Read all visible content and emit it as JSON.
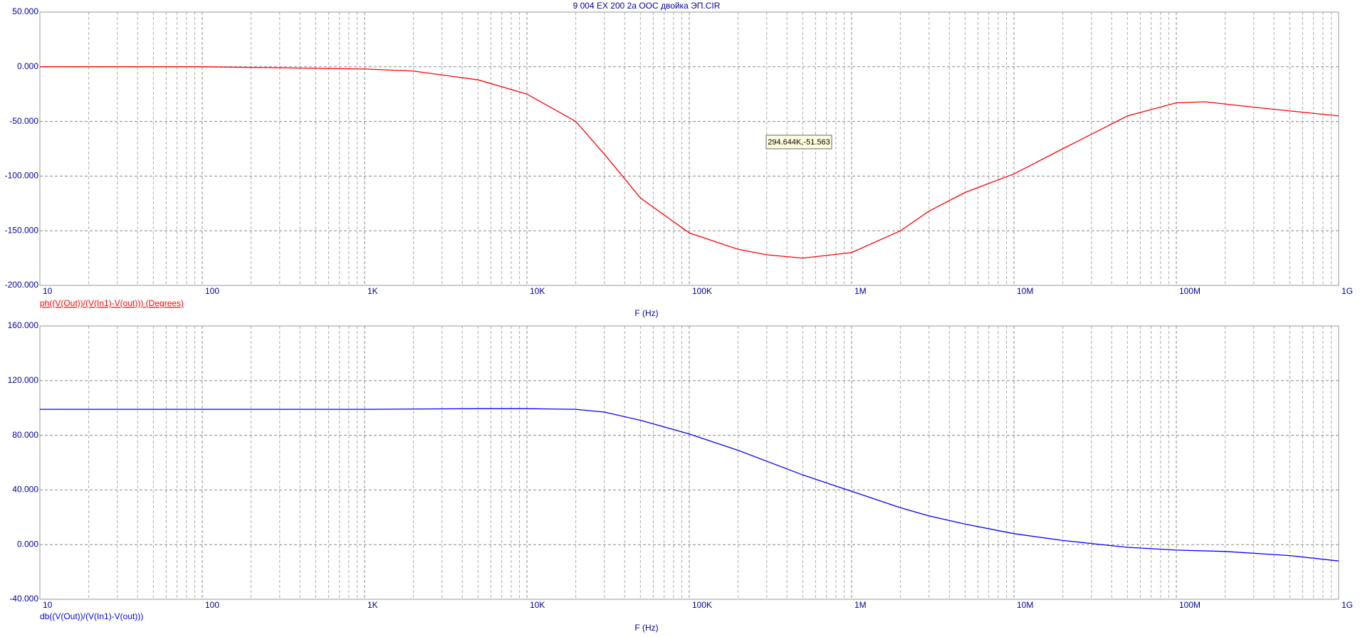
{
  "chart_data": [
    {
      "type": "line",
      "title": "9 004 EX 200 2a ООС двойка ЭП.CIR",
      "x_label": "F (Hz)",
      "log_x": true,
      "grid": true,
      "minor_grid": true,
      "annotation": "294.644K,-51.563",
      "x": [
        10,
        100,
        1000,
        2000,
        5000,
        10000,
        20000,
        30000,
        50000,
        100000,
        200000,
        300000,
        500000,
        1000000,
        2000000,
        3000000,
        5000000,
        10000000,
        20000000,
        50000000,
        100000000,
        150000000,
        300000000,
        1000000000
      ],
      "series": [
        {
          "name": "ph((V(Out))/(V(In1)-V(out))) (Degrees)",
          "color": "#ff0000",
          "values": [
            0,
            0,
            -2,
            -4,
            -12,
            -25,
            -50,
            -80,
            -120,
            -152,
            -167,
            -172,
            -175,
            -170,
            -150,
            -132,
            -115,
            -98,
            -75,
            -45,
            -33,
            -32,
            -37,
            -45
          ]
        }
      ],
      "xlim": [
        10,
        1000000000
      ],
      "xticks": [
        10,
        100,
        {
          "value": 1000,
          "label": "1K"
        },
        {
          "value": 10000,
          "label": "10K"
        },
        {
          "value": 100000,
          "label": "100K"
        },
        {
          "value": 1000000,
          "label": "1M"
        },
        {
          "value": 10000000,
          "label": "10M"
        },
        {
          "value": 100000000,
          "label": "100M"
        },
        {
          "value": 1000000000,
          "label": "1G"
        }
      ],
      "ylim": [
        -200,
        50
      ],
      "yticks": [
        {
          "value": -200,
          "label": "-200.000"
        },
        {
          "value": -150,
          "label": "-150.000"
        },
        {
          "value": -100,
          "label": "-100.000"
        },
        {
          "value": -50,
          "label": "-50.000"
        },
        {
          "value": 0,
          "label": "0.000"
        },
        {
          "value": 50,
          "label": "50.000"
        }
      ]
    },
    {
      "type": "line",
      "x_label": "F (Hz)",
      "log_x": true,
      "grid": true,
      "minor_grid": true,
      "x": [
        10,
        1000,
        5000,
        10000,
        20000,
        30000,
        50000,
        100000,
        200000,
        500000,
        1000000,
        2000000,
        3000000,
        5000000,
        10000000,
        20000000,
        50000000,
        100000000,
        200000000,
        500000000,
        1000000000
      ],
      "series": [
        {
          "name": "db((V(Out))/(V(In1)-V(out)))",
          "color": "#0000ff",
          "values": [
            99,
            99,
            99.5,
            99.5,
            99,
            97,
            91,
            81,
            69,
            51,
            39,
            27,
            21,
            15,
            8,
            3,
            -2,
            -4,
            -5,
            -8,
            -12
          ]
        }
      ],
      "xlim": [
        10,
        1000000000
      ],
      "xticks": [
        10,
        100,
        {
          "value": 1000,
          "label": "1K"
        },
        {
          "value": 10000,
          "label": "10K"
        },
        {
          "value": 100000,
          "label": "100K"
        },
        {
          "value": 1000000,
          "label": "1M"
        },
        {
          "value": 10000000,
          "label": "10M"
        },
        {
          "value": 100000000,
          "label": "100M"
        },
        {
          "value": 1000000000,
          "label": "1G"
        }
      ],
      "ylim": [
        -40,
        160
      ],
      "yticks": [
        {
          "value": -40,
          "label": "-40.000"
        },
        {
          "value": 0,
          "label": "0.000"
        },
        {
          "value": 40,
          "label": "40.000"
        },
        {
          "value": 80,
          "label": "80.000"
        },
        {
          "value": 120,
          "label": "120.000"
        },
        {
          "value": 160,
          "label": "160.000"
        }
      ]
    }
  ]
}
